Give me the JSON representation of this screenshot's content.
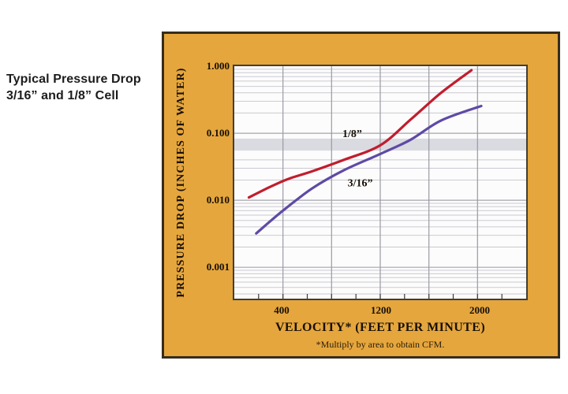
{
  "caption": {
    "line1": "Typical Pressure Drop",
    "line2": "3/16” and 1/8” Cell"
  },
  "panel": {
    "background": "#e5a63d",
    "border_color": "#362c1b"
  },
  "chart_data": {
    "type": "line",
    "title": "Typical Pressure Drop 3/16” and 1/8” Cell",
    "xlabel": "VELOCITY* (FEET PER MINUTE)",
    "ylabel": "PRESSURE DROP (INCHES OF WATER)",
    "footnote": "*Multiply by area to obtain CFM.",
    "x_axis": {
      "scale": "linear",
      "min": 0,
      "max": 2400,
      "gridlines": [
        400,
        800,
        1200,
        1600,
        2000
      ],
      "ticks": [
        200,
        400,
        600,
        800,
        1000,
        1200,
        1400,
        1600,
        1800,
        2000,
        2200
      ],
      "tick_labels": [
        {
          "value": 400,
          "label": "400"
        },
        {
          "value": 1200,
          "label": "1200"
        },
        {
          "value": 2000,
          "label": "2000"
        }
      ]
    },
    "y_axis": {
      "scale": "log",
      "min": 0.00034,
      "max": 1.0,
      "major_gridlines": [
        0.1,
        0.01,
        0.001
      ],
      "minor_gridlines": [
        0.9,
        0.8,
        0.7,
        0.6,
        0.5,
        0.4,
        0.3,
        0.2,
        0.04,
        0.03,
        0.02,
        0.009,
        0.008,
        0.007,
        0.006,
        0.005,
        0.004,
        0.003,
        0.002,
        0.0009,
        0.0008,
        0.0007,
        0.0006,
        0.0005,
        0.0004
      ],
      "tick_labels": [
        {
          "value": 1.0,
          "label": "1.000"
        },
        {
          "value": 0.1,
          "label": "0.100"
        },
        {
          "value": 0.01,
          "label": "0.010"
        },
        {
          "value": 0.001,
          "label": "0.001"
        }
      ]
    },
    "highlight_band": {
      "from": 0.083,
      "to": 0.055,
      "color": "#dadae1"
    },
    "style": {
      "grid_vertical": "#9a9aa4",
      "grid_major": "#a4a4ae",
      "grid_minor": "#cacad2",
      "tick_color": "#3a3a3a",
      "curve_label_color": "#181008"
    },
    "series": [
      {
        "name": "1/8”",
        "color": "#c01e2e",
        "points": [
          [
            120,
            0.011
          ],
          [
            300,
            0.016
          ],
          [
            450,
            0.021
          ],
          [
            640,
            0.027
          ],
          [
            900,
            0.04
          ],
          [
            1200,
            0.066
          ],
          [
            1450,
            0.16
          ],
          [
            1700,
            0.4
          ],
          [
            1950,
            0.87
          ]
        ],
        "label": {
          "text": "1/8”",
          "x": 970,
          "y": 0.098
        }
      },
      {
        "name": "3/16”",
        "color": "#5e4aa5",
        "points": [
          [
            180,
            0.0032
          ],
          [
            400,
            0.007
          ],
          [
            640,
            0.015
          ],
          [
            900,
            0.028
          ],
          [
            1200,
            0.049
          ],
          [
            1450,
            0.08
          ],
          [
            1700,
            0.155
          ],
          [
            2030,
            0.255
          ]
        ],
        "label": {
          "text": "3/16”",
          "x": 1035,
          "y": 0.018
        }
      }
    ]
  }
}
